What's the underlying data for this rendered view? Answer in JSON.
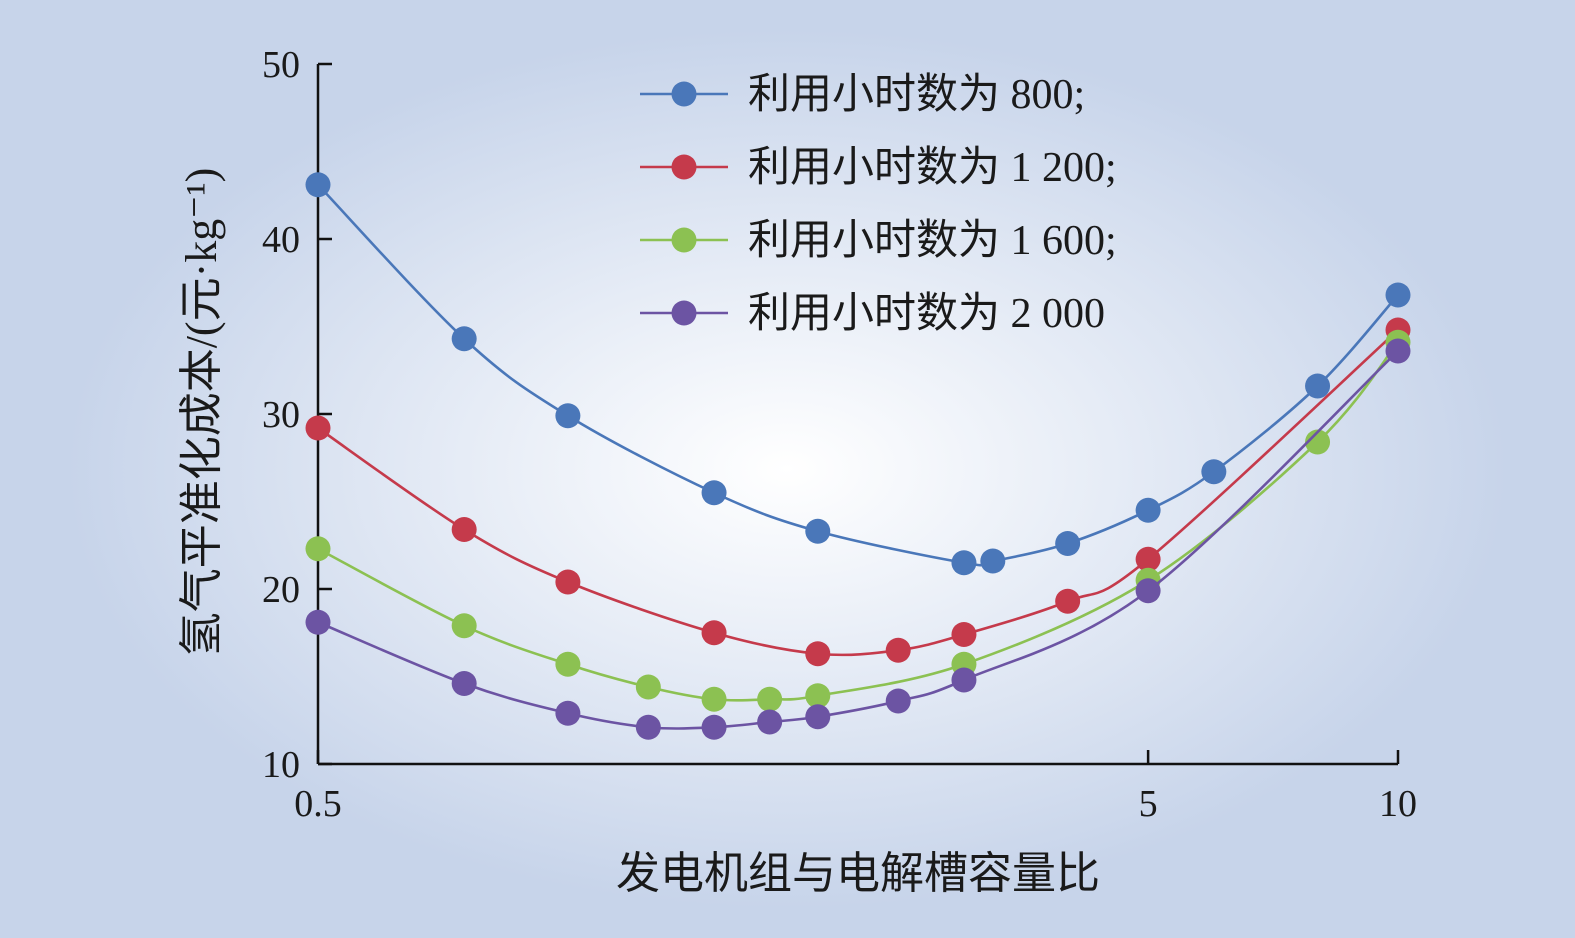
{
  "chart_data": {
    "type": "line",
    "xscale": "log",
    "xlim": [
      0.5,
      10
    ],
    "ylim": [
      10,
      50
    ],
    "xticks": [
      0.5,
      5,
      10
    ],
    "xtick_labels": [
      "0.5",
      "5",
      "10"
    ],
    "yticks": [
      10,
      20,
      30,
      40,
      50
    ],
    "ytick_labels": [
      "10",
      "20",
      "30",
      "40",
      "50"
    ],
    "xlabel": "发电机组与电解槽容量比",
    "ylabel": "氢气平准化成本/(元·kg⁻¹)",
    "legend_position": "top-center",
    "grid": false,
    "series": [
      {
        "name": "利用小时数为 800;",
        "color": "#4a77b9",
        "x": [
          0.5,
          0.75,
          1.0,
          1.5,
          2.0,
          3.0,
          3.25,
          4.0,
          5.0,
          6.0,
          8.0,
          10.0
        ],
        "y": [
          43.1,
          34.3,
          29.9,
          25.5,
          23.3,
          21.5,
          21.6,
          22.6,
          24.5,
          26.7,
          31.6,
          36.8
        ]
      },
      {
        "name": "利用小时数为 1 200;",
        "color": "#c53a4b",
        "x": [
          0.5,
          0.75,
          1.0,
          1.5,
          2.0,
          2.5,
          3.0,
          4.0,
          5.0,
          10.0
        ],
        "y": [
          29.2,
          23.4,
          20.4,
          17.5,
          16.3,
          16.5,
          17.4,
          19.3,
          21.7,
          34.8
        ]
      },
      {
        "name": "利用小时数为 1 600;",
        "color": "#8cc152",
        "x": [
          0.5,
          0.75,
          1.0,
          1.25,
          1.5,
          1.75,
          2.0,
          3.0,
          5.0,
          8.0,
          10.0
        ],
        "y": [
          22.3,
          17.9,
          15.7,
          14.4,
          13.7,
          13.7,
          13.9,
          15.7,
          20.5,
          28.4,
          34.1
        ]
      },
      {
        "name": "利用小时数为 2 000",
        "color": "#6c54a3",
        "x": [
          0.5,
          0.75,
          1.0,
          1.25,
          1.5,
          1.75,
          2.0,
          2.5,
          3.0,
          5.0,
          10.0
        ],
        "y": [
          18.1,
          14.6,
          12.9,
          12.1,
          12.1,
          12.4,
          12.7,
          13.6,
          14.8,
          19.9,
          33.6
        ]
      }
    ]
  }
}
